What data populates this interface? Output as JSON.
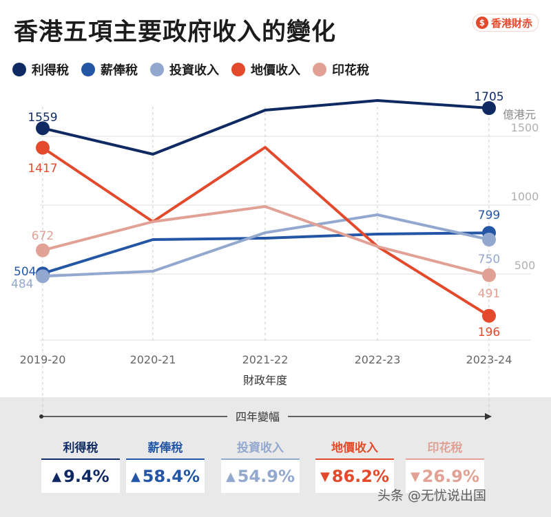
{
  "title": "香港五項主要政府收入的變化",
  "brand": {
    "logo_symbol": "$",
    "logo_text": "香港財赤"
  },
  "colors": {
    "profits_tax": "#0f2a62",
    "salaries_tax": "#2456a6",
    "investment_income": "#93a8cf",
    "land_premium": "#e34a2c",
    "stamp_duty": "#e2a195"
  },
  "chart_data": {
    "type": "line",
    "title": "香港五項主要政府收入的變化",
    "xlabel": "財政年度",
    "unit_label": "億港元",
    "categories": [
      "2019-20",
      "2020-21",
      "2021-22",
      "2022-23",
      "2023-24"
    ],
    "ylim": [
      -500,
      1800
    ],
    "yticks": [
      500,
      1000,
      1500
    ],
    "legend_position": "top-left",
    "series": [
      {
        "key": "profits_tax",
        "name": "利得稅",
        "values": [
          1559,
          1370,
          1690,
          1760,
          1705
        ],
        "labels": {
          "0": "1559",
          "4": "1705"
        }
      },
      {
        "key": "salaries_tax",
        "name": "薪俸稅",
        "values": [
          504,
          750,
          760,
          790,
          799
        ],
        "labels": {
          "0": "504",
          "4": "799"
        }
      },
      {
        "key": "investment_income",
        "name": "投資收入",
        "values": [
          484,
          520,
          800,
          930,
          750
        ],
        "labels": {
          "0": "484",
          "4": "750"
        }
      },
      {
        "key": "land_premium",
        "name": "地價收入",
        "values": [
          1417,
          880,
          1420,
          700,
          196
        ],
        "labels": {
          "0": "1417",
          "4": "196"
        }
      },
      {
        "key": "stamp_duty",
        "name": "印花稅",
        "values": [
          672,
          880,
          990,
          700,
          491
        ],
        "labels": {
          "0": "672",
          "4": "491"
        }
      }
    ]
  },
  "change_section": {
    "label": "四年變幅",
    "items": [
      {
        "key": "profits_tax",
        "name": "利得稅",
        "direction": "up",
        "value": "9.4%"
      },
      {
        "key": "salaries_tax",
        "name": "薪俸稅",
        "direction": "up",
        "value": "58.4%"
      },
      {
        "key": "investment_income",
        "name": "投資收入",
        "direction": "up",
        "value": "54.9%"
      },
      {
        "key": "land_premium",
        "name": "地價收入",
        "direction": "down",
        "value": "86.2%"
      },
      {
        "key": "stamp_duty",
        "name": "印花稅",
        "direction": "down",
        "value": "26.9%"
      }
    ]
  },
  "watermark": "头条 @无忧说出国"
}
